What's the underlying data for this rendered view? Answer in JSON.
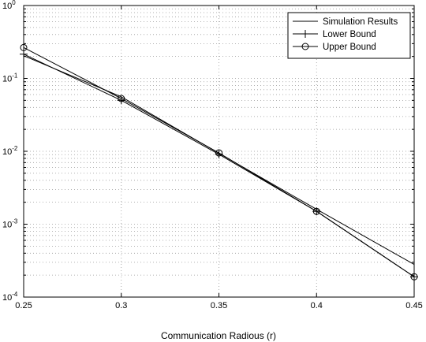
{
  "chart_data": {
    "type": "line",
    "title": "",
    "xlabel": "Communication Radious (r)",
    "ylabel": "",
    "xscale": "linear",
    "yscale": "log",
    "xlim": [
      0.25,
      0.45
    ],
    "ylim": [
      0.0001,
      1
    ],
    "grid": true,
    "legend_position": "top-right",
    "x_ticks": [
      {
        "value": 0.25,
        "label": "0.25"
      },
      {
        "value": 0.3,
        "label": "0.3"
      },
      {
        "value": 0.35,
        "label": "0.35"
      },
      {
        "value": 0.4,
        "label": "0.4"
      },
      {
        "value": 0.45,
        "label": "0.45"
      }
    ],
    "y_ticks": [
      {
        "value": 1,
        "base": "10",
        "exp": "0"
      },
      {
        "value": 0.1,
        "base": "10",
        "exp": "-1"
      },
      {
        "value": 0.01,
        "base": "10",
        "exp": "-2"
      },
      {
        "value": 0.001,
        "base": "10",
        "exp": "-3"
      },
      {
        "value": 0.0001,
        "base": "10",
        "exp": "-4"
      }
    ],
    "x": [
      0.25,
      0.3,
      0.35,
      0.4,
      0.45
    ],
    "series": [
      {
        "name": "Simulation Results",
        "marker": "none",
        "values": [
          0.205,
          0.056,
          0.0094,
          0.0016,
          0.00028
        ]
      },
      {
        "name": "Lower Bound",
        "marker": "plus",
        "values": [
          0.215,
          0.05,
          0.0091,
          0.0015,
          0.00019
        ]
      },
      {
        "name": "Upper Bound",
        "marker": "circle",
        "values": [
          0.265,
          0.053,
          0.0095,
          0.0015,
          0.00019
        ]
      }
    ],
    "colors": {
      "line": "#000000",
      "grid": "#999999",
      "background": "#ffffff"
    }
  }
}
